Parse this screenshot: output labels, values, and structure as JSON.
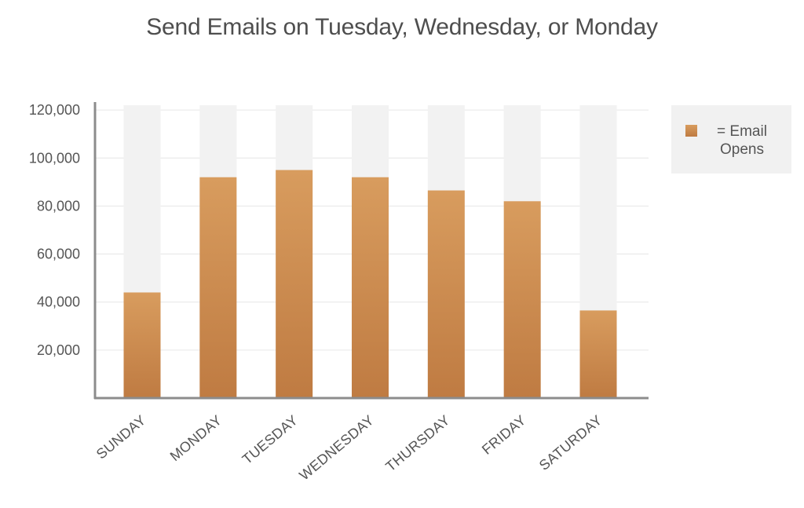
{
  "title": "Send Emails on Tuesday, Wednesday, or Monday",
  "legend": {
    "label": "= Email Opens"
  },
  "colors": {
    "bar_top": "#d89c5e",
    "bar_bottom": "#bf7b42",
    "bar_background": "#f2f2f2",
    "axis": "#8c8c8c",
    "gridline": "#e6e6e6",
    "text": "#555555"
  },
  "chart_data": {
    "type": "bar",
    "categories": [
      "SUNDAY",
      "MONDAY",
      "TUESDAY",
      "WEDNESDAY",
      "THURSDAY",
      "FRIDAY",
      "SATURDAY"
    ],
    "series": [
      {
        "name": "Email Opens",
        "values": [
          44000,
          92000,
          95000,
          92000,
          86500,
          82000,
          36500
        ]
      }
    ],
    "title": "Send Emails on Tuesday, Wednesday, or Monday",
    "xlabel": "",
    "ylabel": "",
    "ylim": [
      0,
      122000
    ],
    "yticks": [
      20000,
      40000,
      60000,
      80000,
      100000,
      120000
    ],
    "ytick_labels": [
      "20,000",
      "40,000",
      "60,000",
      "80,000",
      "100,000",
      "120,000"
    ],
    "grid": true,
    "legend_position": "right"
  }
}
